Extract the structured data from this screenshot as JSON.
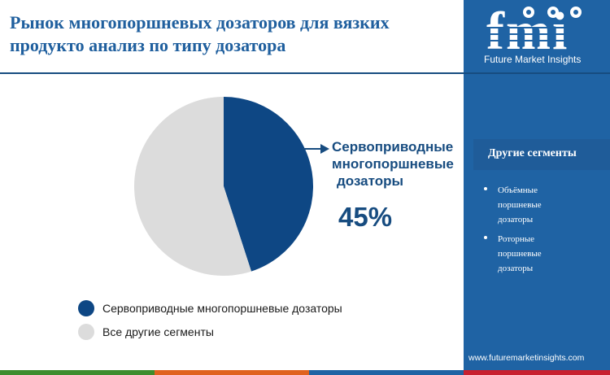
{
  "title": {
    "line1": "Рынок многопоршневых дозаторов для вязких",
    "line2": "продукто анализ по типу дозатора"
  },
  "chart_data": {
    "type": "pie",
    "title": "Рынок многопоршневых дозаторов для вязких продукто анализ по типу дозатора",
    "categories": [
      "Сервоприводные многопоршневые дозаторы",
      "Все другие сегменты"
    ],
    "values": [
      45,
      55
    ],
    "colors": [
      "#0e4784",
      "#dcdcdc"
    ],
    "annotation": {
      "label_lines": [
        "Сервоприводные",
        "многопоршневые",
        "дозаторы"
      ],
      "value_text": "45%"
    },
    "legend": [
      {
        "label": "Сервоприводные многопоршневые дозаторы",
        "color": "#0e4784"
      },
      {
        "label": "Все другие сегменты",
        "color": "#dcdcdc"
      }
    ]
  },
  "sidebar": {
    "logo_text": "fmi",
    "logo_caption": "Future Market Insights",
    "segments_title": "Другие сегменты",
    "segments": [
      "Объёмные поршневые дозаторы",
      "Роторные поршневые дозаторы"
    ],
    "website": "www.futuremarketinsights.com"
  },
  "bottom_bar_colors": [
    "#3d8d2e",
    "#e0621f",
    "#1f63a4",
    "#c8202f"
  ]
}
